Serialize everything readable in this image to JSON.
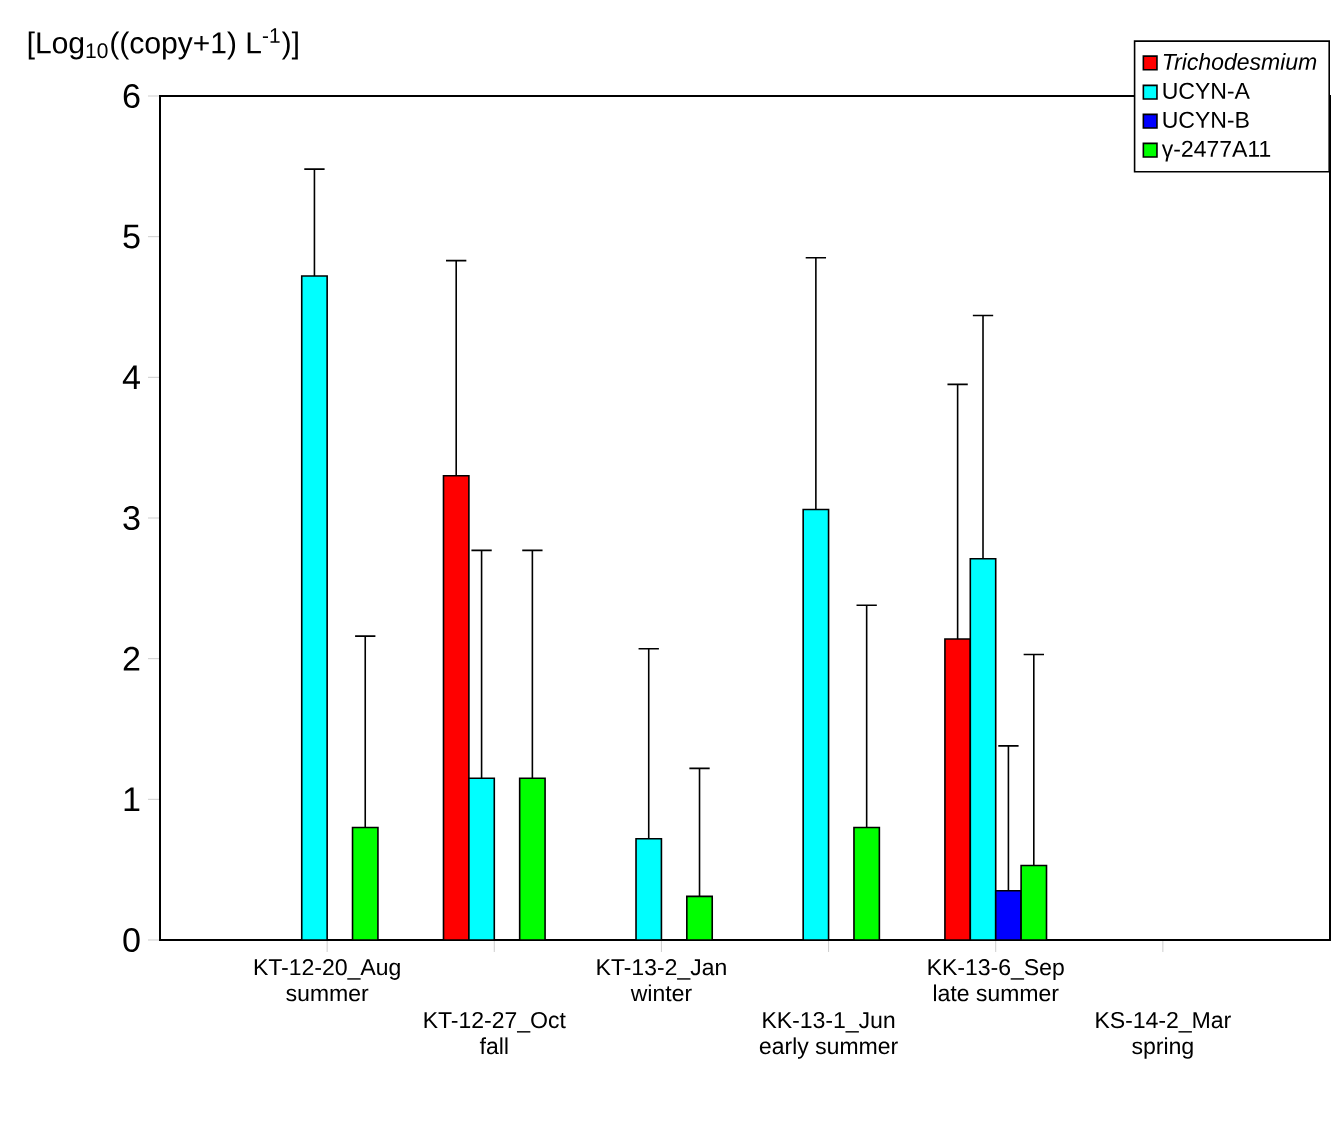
{
  "chart_data": {
    "type": "bar",
    "ylabel": "[Log$_{10}$((copy+1) L$^{-1}$)]",
    "categories": [
      "KT-12-20_Aug summer",
      "KT-12-27_Oct fall",
      "KT-13-2_Jan winter",
      "KK-13-1_Jun early summer",
      "KK-13-6_Sep late summer",
      "KS-14-2_Mar spring"
    ],
    "series": [
      {
        "name": "*Trichodesmium*",
        "color": "#ff0000",
        "values": [
          null,
          3.3,
          null,
          null,
          2.14,
          null
        ],
        "errors": [
          null,
          [
            3.3,
            4.83
          ],
          null,
          null,
          [
            2.14,
            3.95
          ],
          null
        ]
      },
      {
        "name": "UCYN-A",
        "color": "#00ffff",
        "values": [
          4.72,
          1.15,
          0.72,
          3.06,
          2.71,
          null
        ],
        "errors": [
          [
            4.72,
            5.48
          ],
          [
            1.15,
            2.77
          ],
          [
            0.72,
            2.07
          ],
          [
            3.06,
            4.85
          ],
          [
            2.71,
            4.44
          ],
          null
        ]
      },
      {
        "name": "UCYN-B",
        "color": "#0000ff",
        "values": [
          null,
          null,
          null,
          null,
          0.35,
          null
        ],
        "errors": [
          null,
          null,
          null,
          null,
          [
            0.35,
            1.38
          ],
          null
        ]
      },
      {
        "name": "γ-2477A11",
        "color": "#00ff00",
        "values": [
          0.8,
          1.15,
          0.31,
          0.8,
          0.53,
          null
        ],
        "errors": [
          [
            0.8,
            2.16
          ],
          [
            1.15,
            2.77
          ],
          [
            0.31,
            1.22
          ],
          [
            0.8,
            2.38
          ],
          [
            0.53,
            2.03
          ],
          null
        ]
      }
    ],
    "ylim": [
      0,
      6
    ],
    "yticks": [
      0,
      1,
      2,
      3,
      4,
      5,
      6
    ],
    "legend": "top right",
    "grid": false
  }
}
